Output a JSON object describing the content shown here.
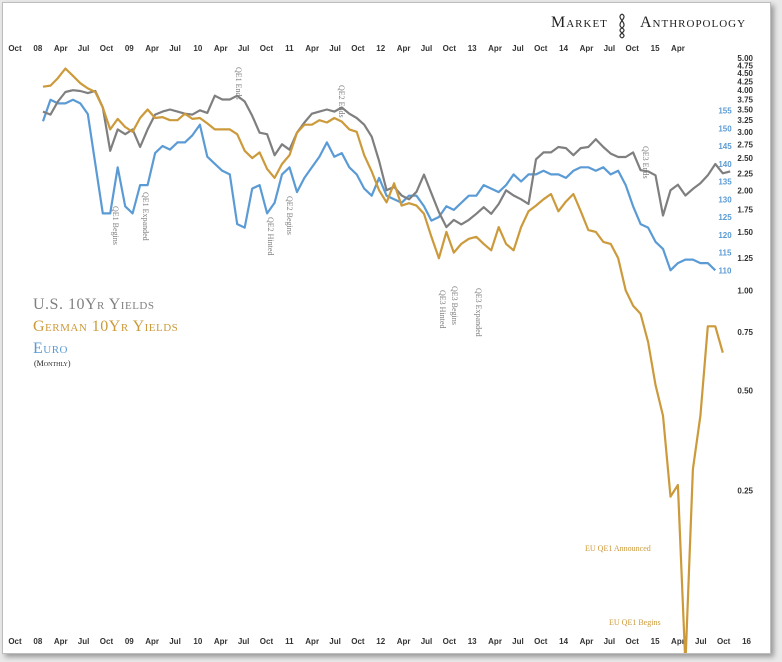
{
  "brand": {
    "left": "Market",
    "right": "Anthropology"
  },
  "legend": {
    "us": "U.S. 10Yr Yields",
    "de": "German 10Yr Yields",
    "eu": "Euro",
    "freq": "(Monthly)"
  },
  "colors": {
    "us": "#7f7f7f",
    "de": "#cc9a3b",
    "eu": "#5b9bd5"
  },
  "chart_data": {
    "type": "line",
    "title": "",
    "x_ticks": [
      "Oct",
      "08",
      "Apr",
      "Jul",
      "Oct",
      "09",
      "Apr",
      "Jul",
      "10",
      "Apr",
      "Jul",
      "Oct",
      "11",
      "Apr",
      "Jul",
      "Oct",
      "12",
      "Apr",
      "Jul",
      "Oct",
      "13",
      "Apr",
      "Jul",
      "Oct",
      "14",
      "Apr",
      "Jul",
      "Oct",
      "15",
      "Apr",
      "Jul",
      "Oct",
      "16"
    ],
    "x_tick_top": [
      "Oct",
      "08",
      "Apr",
      "Jul",
      "Oct",
      "09",
      "Apr",
      "Jul",
      "10",
      "Apr",
      "Jul",
      "Oct",
      "11",
      "Apr",
      "Jul",
      "Oct",
      "12",
      "Apr",
      "Jul",
      "Oct",
      "13",
      "Apr",
      "Jul",
      "Oct",
      "14",
      "Apr",
      "Jul",
      "Oct",
      "15",
      "Apr"
    ],
    "yield_axis": {
      "scale": "log",
      "ticks": [
        "5.00",
        "4.75",
        "4.50",
        "4.25",
        "4.00",
        "3.75",
        "3.50",
        "3.25",
        "3.00",
        "2.75",
        "2.50",
        "2.25",
        "2.00",
        "1.75",
        "1.50",
        "1.25",
        "1.00",
        "0.75",
        "0.50",
        "0.25"
      ],
      "range": [
        0.1,
        5.0
      ]
    },
    "euro_axis": {
      "ticks": [
        "155",
        "150",
        "145",
        "140",
        "135",
        "130",
        "125",
        "120",
        "115",
        "110"
      ],
      "range": [
        107,
        158
      ]
    },
    "series": [
      {
        "name": "U.S. 10Yr Yields",
        "color": "#7f7f7f",
        "values": [
          3.45,
          3.38,
          3.7,
          3.95,
          4.0,
          3.98,
          3.92,
          3.98,
          3.55,
          2.63,
          3.05,
          2.95,
          3.05,
          2.7,
          3.05,
          3.38,
          3.45,
          3.5,
          3.45,
          3.4,
          3.38,
          3.48,
          3.42,
          3.85,
          3.75,
          3.75,
          3.85,
          3.7,
          3.35,
          2.98,
          2.95,
          2.55,
          2.75,
          2.65,
          2.98,
          3.2,
          3.4,
          3.45,
          3.5,
          3.45,
          3.55,
          3.4,
          3.3,
          3.15,
          2.9,
          2.45,
          2.0,
          2.05,
          1.93,
          1.88,
          1.98,
          2.23,
          1.96,
          1.72,
          1.55,
          1.63,
          1.58,
          1.63,
          1.7,
          1.78,
          1.7,
          1.82,
          2.0,
          1.93,
          1.88,
          1.82,
          2.48,
          2.6,
          2.6,
          2.7,
          2.68,
          2.55,
          2.68,
          2.7,
          2.85,
          2.7,
          2.58,
          2.52,
          2.52,
          2.6,
          2.3,
          2.28,
          2.22,
          1.68,
          2.0,
          2.08,
          1.93,
          2.02,
          2.1,
          2.22,
          2.4,
          2.25,
          2.28
        ]
      },
      {
        "name": "German 10Yr Yields",
        "color": "#cc9a3b",
        "values": [
          4.1,
          4.13,
          4.35,
          4.65,
          4.42,
          4.2,
          4.05,
          3.95,
          3.55,
          3.05,
          3.28,
          3.1,
          3.0,
          3.3,
          3.5,
          3.3,
          3.32,
          3.25,
          3.25,
          3.4,
          3.28,
          3.3,
          3.18,
          3.05,
          3.05,
          3.05,
          2.95,
          2.63,
          2.5,
          2.6,
          2.32,
          2.18,
          2.4,
          2.55,
          2.98,
          3.15,
          3.15,
          3.25,
          3.2,
          3.3,
          3.22,
          3.05,
          3.0,
          2.55,
          2.28,
          2.0,
          1.84,
          2.1,
          1.8,
          1.83,
          1.8,
          1.7,
          1.45,
          1.25,
          1.5,
          1.3,
          1.38,
          1.43,
          1.45,
          1.38,
          1.32,
          1.55,
          1.38,
          1.32,
          1.55,
          1.73,
          1.8,
          1.88,
          1.95,
          1.73,
          1.85,
          1.95,
          1.73,
          1.52,
          1.5,
          1.4,
          1.38,
          1.25,
          1.0,
          0.9,
          0.85,
          0.7,
          0.52,
          0.42,
          0.24,
          0.26,
          0.075,
          0.29,
          0.42,
          0.78,
          0.78,
          0.65
        ]
      },
      {
        "name": "Euro",
        "color": "#5b9bd5",
        "values": [
          152,
          158,
          157,
          157,
          158,
          157,
          154,
          140,
          126,
          126,
          139,
          128,
          126,
          134,
          134,
          143,
          145,
          144,
          146,
          146,
          148,
          151,
          142,
          140,
          138,
          137,
          123,
          122,
          133,
          134,
          126,
          129,
          137,
          139,
          132,
          136,
          139,
          142,
          146,
          142,
          143,
          139,
          137,
          133,
          131,
          136,
          131,
          130,
          129,
          131,
          131,
          128,
          124,
          125,
          128,
          127,
          129,
          131,
          131,
          134,
          133,
          132,
          134,
          137,
          135,
          137,
          137,
          138,
          137,
          137,
          136,
          138,
          139,
          139,
          138,
          139,
          137,
          138,
          134,
          128,
          123,
          122,
          118,
          116,
          110,
          112,
          113,
          113,
          112,
          112,
          110
        ]
      }
    ],
    "annotations": [
      {
        "text": "QE1 Begins",
        "color": "#7f7f7f"
      },
      {
        "text": "QE1 Expanded",
        "color": "#7f7f7f"
      },
      {
        "text": "QE1 Ends",
        "color": "#7f7f7f"
      },
      {
        "text": "QE2 Hinted",
        "color": "#7f7f7f"
      },
      {
        "text": "QE2 Begins",
        "color": "#7f7f7f"
      },
      {
        "text": "QE2 Ends",
        "color": "#7f7f7f"
      },
      {
        "text": "QE3 Hinted",
        "color": "#7f7f7f"
      },
      {
        "text": "QE3 Begins",
        "color": "#7f7f7f"
      },
      {
        "text": "QE3 Expanded",
        "color": "#7f7f7f"
      },
      {
        "text": "QE3 Ends",
        "color": "#7f7f7f"
      },
      {
        "text": "EU QE1 Announced",
        "color": "#cc9a3b"
      },
      {
        "text": "EU QE1 Begins",
        "color": "#cc9a3b"
      }
    ]
  }
}
